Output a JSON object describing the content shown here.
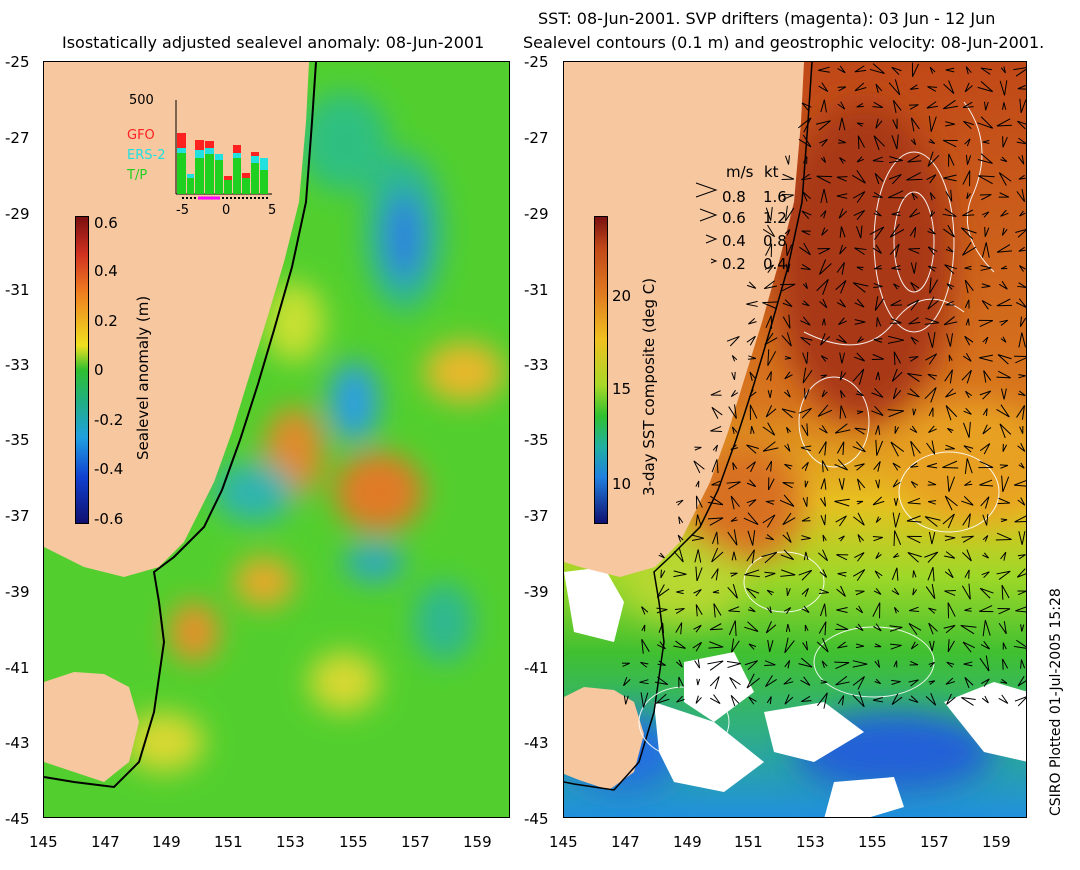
{
  "left_panel": {
    "title": "Isostatically adjusted sealevel anomaly: 08-Jun-2001",
    "colorbar": {
      "label": "Sealevel anomaly (m)",
      "ticks": [
        "0.6",
        "0.4",
        "0.2",
        "0",
        "-0.2",
        "-0.4",
        "-0.6"
      ]
    },
    "inset": {
      "ymax_label": "500",
      "legend": [
        {
          "name": "GFO",
          "color": "#ff2020"
        },
        {
          "name": "ERS-2",
          "color": "#20e0e0"
        },
        {
          "name": "T/P",
          "color": "#20d020"
        }
      ],
      "x_ticks": [
        "-5",
        "0",
        "5"
      ]
    }
  },
  "right_panel": {
    "title_line1": "SST: 08-Jun-2001. SVP drifters (magenta): 03 Jun - 12 Jun",
    "title_line2": "Sealevel contours (0.1 m) and geostrophic velocity: 08-Jun-2001.",
    "colorbar": {
      "label": "3-day SST composite (deg C)",
      "ticks": [
        "20",
        "15",
        "10"
      ]
    },
    "velocity_legend": {
      "header_ms": "m/s",
      "header_kt": "kt",
      "rows": [
        {
          "ms": "0.8",
          "kt": "1.6"
        },
        {
          "ms": "0.6",
          "kt": "1.2"
        },
        {
          "ms": "0.4",
          "kt": "0.8"
        },
        {
          "ms": "0.2",
          "kt": "0.4"
        }
      ]
    }
  },
  "y_ticks": [
    "-25",
    "-27",
    "-29",
    "-31",
    "-33",
    "-35",
    "-37",
    "-39",
    "-41",
    "-43",
    "-45"
  ],
  "x_ticks": [
    "145",
    "147",
    "149",
    "151",
    "153",
    "155",
    "157",
    "159"
  ],
  "stamp": "CSIRO Plotted 01-Jul-2005 15:28",
  "colors": {
    "land": "#f7c7a0",
    "ocean_green": "#4ccf2a",
    "sst_warm": "#c8531a",
    "sst_mid": "#e7a41e"
  }
}
